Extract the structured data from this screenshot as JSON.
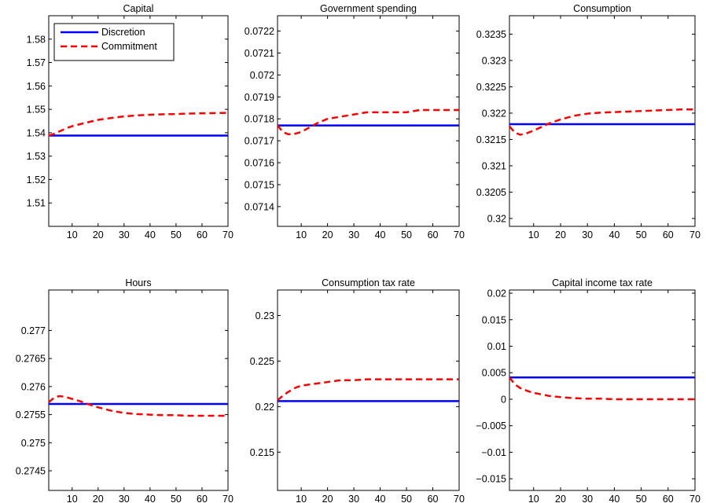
{
  "figure": {
    "legend": {
      "items": [
        {
          "label": "Discretion",
          "color": "#0000ff",
          "style": "solid"
        },
        {
          "label": "Commitment",
          "color": "#ff0000",
          "style": "dashed"
        }
      ],
      "placement": "top-left of first panel"
    }
  },
  "chart_data": [
    {
      "type": "line",
      "title": "Capital",
      "xlabel": "",
      "ylabel": "",
      "xlim": [
        1,
        70
      ],
      "ylim": [
        1.5,
        1.59
      ],
      "xticks": [
        "10",
        "20",
        "30",
        "40",
        "50",
        "60",
        "70"
      ],
      "yticks": [
        "1.51",
        "1.52",
        "1.53",
        "1.54",
        "1.55",
        "1.56",
        "1.57",
        "1.58"
      ],
      "series": [
        {
          "name": "Discretion",
          "color": "#0000ff",
          "style": "solid",
          "x": [
            1,
            70
          ],
          "y": [
            1.5388,
            1.5388
          ]
        },
        {
          "name": "Commitment",
          "color": "#ff0000",
          "style": "dashed",
          "x": [
            1,
            3,
            5,
            8,
            10,
            15,
            20,
            25,
            30,
            35,
            40,
            45,
            50,
            55,
            60,
            65,
            70
          ],
          "y": [
            1.5388,
            1.5395,
            1.5405,
            1.542,
            1.5428,
            1.5442,
            1.5455,
            1.5463,
            1.547,
            1.5474,
            1.5477,
            1.5479,
            1.548,
            1.5482,
            1.5483,
            1.5484,
            1.5485
          ]
        }
      ]
    },
    {
      "type": "line",
      "title": "Government spending",
      "xlabel": "",
      "ylabel": "",
      "xlim": [
        1,
        70
      ],
      "ylim": [
        0.07131,
        0.07227
      ],
      "xticks": [
        "10",
        "20",
        "30",
        "40",
        "50",
        "60",
        "70"
      ],
      "yticks": [
        "0.0714",
        "0.0715",
        "0.0716",
        "0.0717",
        "0.0718",
        "0.0719",
        "0.072",
        "0.0721",
        "0.0722"
      ],
      "series": [
        {
          "name": "Discretion",
          "color": "#0000ff",
          "style": "solid",
          "x": [
            1,
            70
          ],
          "y": [
            0.07177,
            0.07177
          ]
        },
        {
          "name": "Commitment",
          "color": "#ff0000",
          "style": "dashed",
          "x": [
            1,
            3,
            5,
            7,
            10,
            13,
            16,
            20,
            25,
            30,
            35,
            40,
            45,
            50,
            55,
            60,
            65,
            70
          ],
          "y": [
            0.07177,
            0.07174,
            0.07173,
            0.07173,
            0.07174,
            0.07176,
            0.07178,
            0.0718,
            0.07181,
            0.07182,
            0.07183,
            0.07183,
            0.07183,
            0.07183,
            0.07184,
            0.07184,
            0.07184,
            0.07184
          ]
        }
      ]
    },
    {
      "type": "line",
      "title": "Consumption",
      "xlabel": "",
      "ylabel": "",
      "xlim": [
        1,
        70
      ],
      "ylim": [
        0.31985,
        0.32385
      ],
      "xticks": [
        "10",
        "20",
        "30",
        "40",
        "50",
        "60",
        "70"
      ],
      "yticks": [
        "0.32",
        "0.3205",
        "0.321",
        "0.3215",
        "0.322",
        "0.3225",
        "0.323",
        "0.3235"
      ],
      "series": [
        {
          "name": "Discretion",
          "color": "#0000ff",
          "style": "solid",
          "x": [
            1,
            70
          ],
          "y": [
            0.32179,
            0.32179
          ]
        },
        {
          "name": "Commitment",
          "color": "#ff0000",
          "style": "dashed",
          "x": [
            1,
            3,
            5,
            7,
            10,
            13,
            16,
            20,
            25,
            30,
            35,
            40,
            45,
            50,
            55,
            60,
            65,
            70
          ],
          "y": [
            0.32175,
            0.32163,
            0.32159,
            0.32161,
            0.32167,
            0.32174,
            0.32181,
            0.32188,
            0.32195,
            0.32199,
            0.32201,
            0.32202,
            0.32203,
            0.32204,
            0.32205,
            0.32206,
            0.32207,
            0.32207
          ]
        }
      ]
    },
    {
      "type": "line",
      "title": "Hours",
      "xlabel": "",
      "ylabel": "",
      "xlim": [
        1,
        70
      ],
      "ylim": [
        0.27415,
        0.27772
      ],
      "xticks": [
        "10",
        "20",
        "30",
        "40",
        "50",
        "60",
        "70"
      ],
      "yticks": [
        "0.2745",
        "0.275",
        "0.2755",
        "0.276",
        "0.2765",
        "0.277"
      ],
      "series": [
        {
          "name": "Discretion",
          "color": "#0000ff",
          "style": "solid",
          "x": [
            1,
            70
          ],
          "y": [
            0.27569,
            0.27569
          ]
        },
        {
          "name": "Commitment",
          "color": "#ff0000",
          "style": "dashed",
          "x": [
            1,
            3,
            5,
            7,
            10,
            13,
            16,
            20,
            25,
            30,
            35,
            40,
            45,
            50,
            55,
            60,
            65,
            70
          ],
          "y": [
            0.27572,
            0.2758,
            0.27583,
            0.27582,
            0.27578,
            0.27574,
            0.27569,
            0.27563,
            0.27557,
            0.27553,
            0.27551,
            0.2755,
            0.27549,
            0.27549,
            0.27548,
            0.27548,
            0.27548,
            0.27548
          ]
        }
      ]
    },
    {
      "type": "line",
      "title": "Consumption tax rate",
      "xlabel": "",
      "ylabel": "",
      "xlim": [
        1,
        70
      ],
      "ylim": [
        0.2108,
        0.2328
      ],
      "xticks": [
        "10",
        "20",
        "30",
        "40",
        "50",
        "60",
        "70"
      ],
      "yticks": [
        "0.215",
        "0.22",
        "0.225",
        "0.23"
      ],
      "series": [
        {
          "name": "Discretion",
          "color": "#0000ff",
          "style": "solid",
          "x": [
            1,
            70
          ],
          "y": [
            0.2206,
            0.2206
          ]
        },
        {
          "name": "Commitment",
          "color": "#ff0000",
          "style": "dashed",
          "x": [
            1,
            3,
            5,
            8,
            10,
            15,
            20,
            25,
            30,
            35,
            40,
            45,
            50,
            55,
            60,
            65,
            70
          ],
          "y": [
            0.2207,
            0.2212,
            0.2216,
            0.2221,
            0.2223,
            0.2225,
            0.2227,
            0.2229,
            0.2229,
            0.223,
            0.223,
            0.223,
            0.223,
            0.223,
            0.223,
            0.223,
            0.223
          ]
        }
      ]
    },
    {
      "type": "line",
      "title": "Capital income tax rate",
      "xlabel": "",
      "ylabel": "",
      "xlim": [
        1,
        70
      ],
      "ylim": [
        -0.0172,
        0.0206
      ],
      "xticks": [
        "10",
        "20",
        "30",
        "40",
        "50",
        "60",
        "70"
      ],
      "yticks": [
        "−0.015",
        "−0.01",
        "−0.005",
        "0",
        "0.005",
        "0.01",
        "0.015",
        "0.02"
      ],
      "yticks_values": [
        -0.015,
        -0.01,
        -0.005,
        0,
        0.005,
        0.01,
        0.015,
        0.02
      ],
      "series": [
        {
          "name": "Discretion",
          "color": "#0000ff",
          "style": "solid",
          "x": [
            1,
            70
          ],
          "y": [
            0.0041,
            0.0041
          ]
        },
        {
          "name": "Commitment",
          "color": "#ff0000",
          "style": "dashed",
          "x": [
            1,
            3,
            5,
            8,
            10,
            13,
            16,
            20,
            25,
            30,
            35,
            40,
            45,
            50,
            55,
            60,
            65,
            70
          ],
          "y": [
            0.0041,
            0.0028,
            0.0021,
            0.0015,
            0.0012,
            0.0009,
            0.0006,
            0.0004,
            0.0002,
            0.0001,
            0.0001,
            0.0,
            0.0,
            0.0,
            0.0,
            0.0,
            0.0,
            0.0
          ]
        }
      ]
    }
  ]
}
